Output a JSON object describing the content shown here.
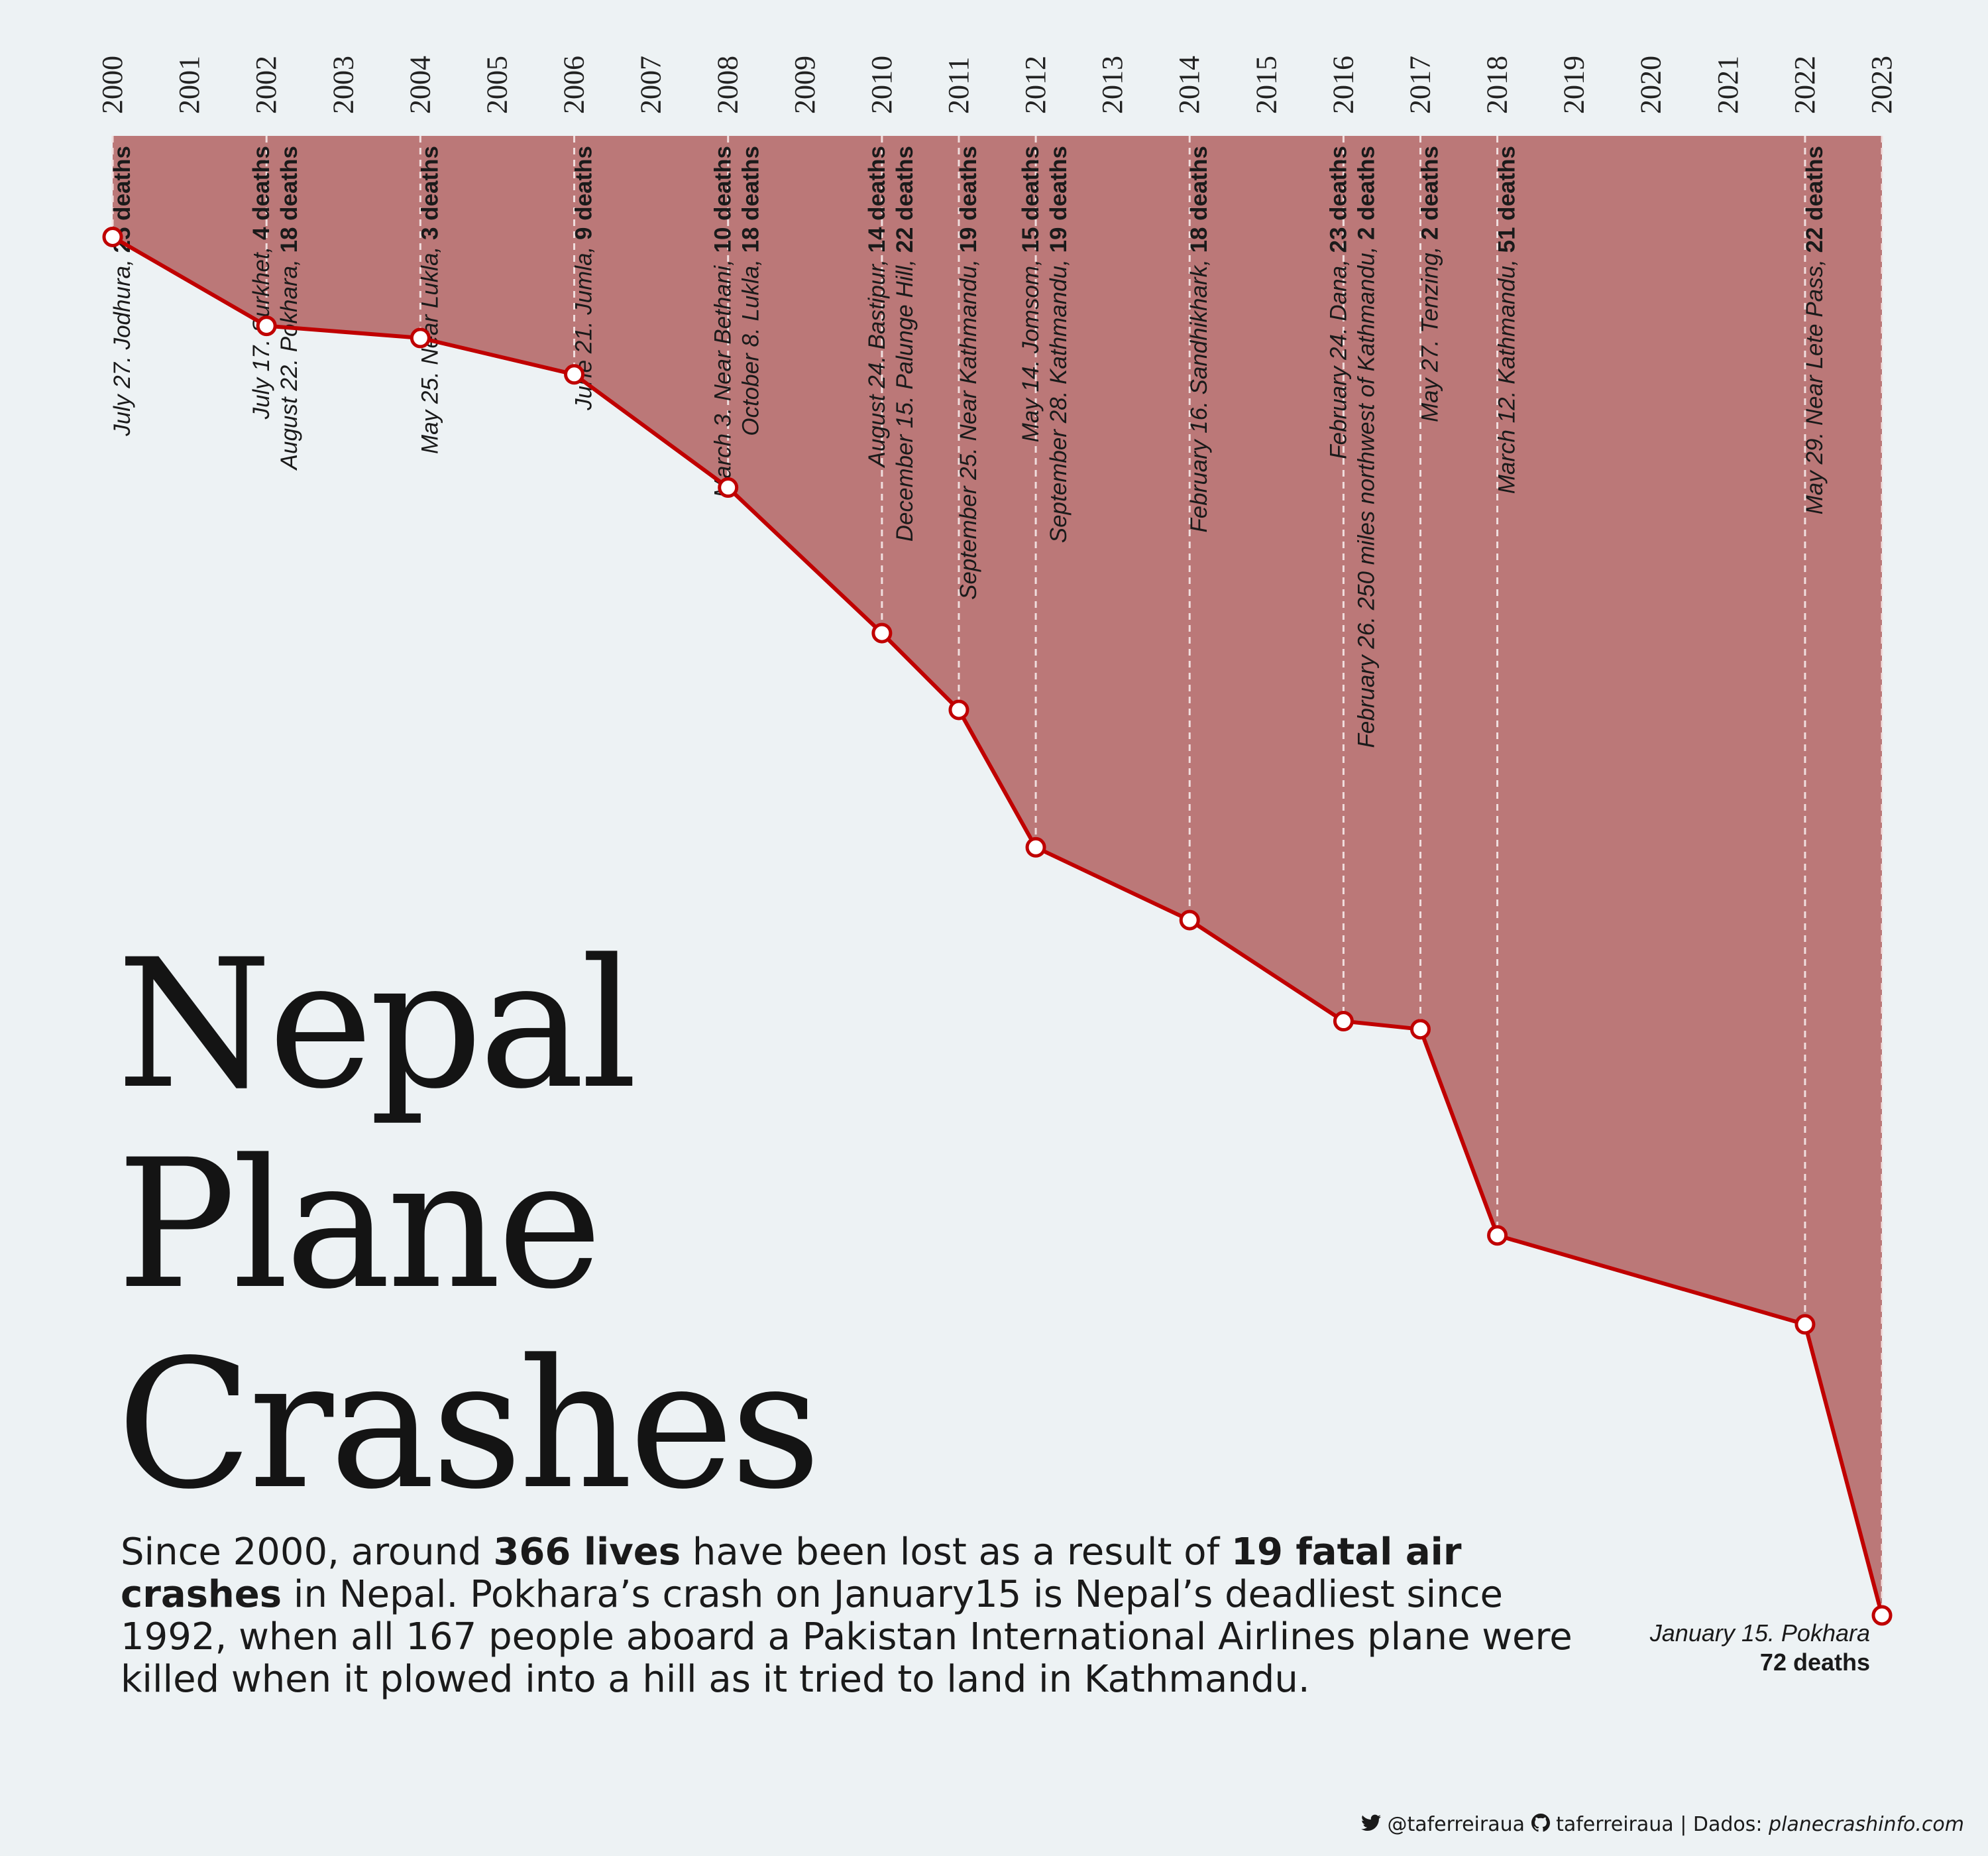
{
  "title_lines": [
    "Nepal",
    "Plane",
    "Crashes"
  ],
  "subtitle": {
    "p1": "Since 2000, around ",
    "b1": "366 lives",
    "p2": " have been lost as a result of ",
    "b2": "19 fatal air crashes",
    "p3": " in Nepal. Pokhara’s crash on January15 is Nepal’s deadliest since 1992, when all 167 people aboard a Pakistan International Airlines plane were killed when it plowed into a hill as it tried to land in Kathmandu."
  },
  "footer": {
    "twitter_icon": "twitter-bird-icon",
    "twitter": "@taferreiraua",
    "github_icon": "github-icon",
    "github": "taferreiraua",
    "separator": "|",
    "source_label": "Dados:",
    "source": "planecrashinfo.com"
  },
  "colors": {
    "area": "#bb7878",
    "line": "#c00000",
    "marker_fill": "#ffffff",
    "guide": "#f0dede",
    "background": "#edf2f4"
  },
  "chart_data": {
    "type": "area",
    "description_of_encoding": "Cumulative deaths since 2000 drawn downward from the top of the plot; each marker is a year with fatal crashes.",
    "years": [
      2000,
      2001,
      2002,
      2003,
      2004,
      2005,
      2006,
      2007,
      2008,
      2009,
      2010,
      2011,
      2012,
      2013,
      2014,
      2015,
      2016,
      2017,
      2018,
      2019,
      2020,
      2021,
      2022,
      2023
    ],
    "x": [
      2000,
      2002,
      2004,
      2006,
      2008,
      2010,
      2011,
      2012,
      2014,
      2016,
      2017,
      2018,
      2022,
      2023
    ],
    "y": [
      25,
      47,
      50,
      59,
      87,
      123,
      142,
      176,
      194,
      219,
      221,
      272,
      294,
      366
    ],
    "ylim": [
      0,
      366
    ],
    "events": [
      {
        "year": 2000,
        "lines": [
          {
            "text": "July 27. Jodhura, ",
            "deaths": "25 deaths"
          }
        ]
      },
      {
        "year": 2002,
        "lines": [
          {
            "text": "July 17. Surkhet, ",
            "deaths": "4 deaths"
          },
          {
            "text": "August 22. Pokhara, ",
            "deaths": "18 deaths"
          }
        ]
      },
      {
        "year": 2004,
        "lines": [
          {
            "text": "May 25. Near Lukla, ",
            "deaths": "3 deaths"
          }
        ]
      },
      {
        "year": 2006,
        "lines": [
          {
            "text": "June 21. Jumla, ",
            "deaths": "9 deaths"
          }
        ]
      },
      {
        "year": 2008,
        "lines": [
          {
            "text": "March 3. Near Bethani, ",
            "deaths": "10 deaths"
          },
          {
            "text": "October 8. Lukla, ",
            "deaths": "18 deaths"
          }
        ]
      },
      {
        "year": 2010,
        "lines": [
          {
            "text": "August 24. Bastipur, ",
            "deaths": "14 deaths"
          },
          {
            "text": "December 15. Palunge Hill, ",
            "deaths": "22 deaths"
          }
        ]
      },
      {
        "year": 2011,
        "lines": [
          {
            "text": "September 25. Near Kathmandu, ",
            "deaths": "19 deaths"
          }
        ]
      },
      {
        "year": 2012,
        "lines": [
          {
            "text": "May 14. Jomsom, ",
            "deaths": "15 deaths"
          },
          {
            "text": "September 28. Kathmandu, ",
            "deaths": "19 deaths"
          }
        ]
      },
      {
        "year": 2014,
        "lines": [
          {
            "text": "February 16. Sandhikhark, ",
            "deaths": "18 deaths"
          }
        ]
      },
      {
        "year": 2016,
        "lines": [
          {
            "text": "February 24. Dana, ",
            "deaths": "23 deaths"
          },
          {
            "text": "February 26. 250 miles northwest of Kathmandu, ",
            "deaths": "2 deaths"
          }
        ]
      },
      {
        "year": 2017,
        "lines": [
          {
            "text": "May 27. Tenzing, ",
            "deaths": "2 deaths"
          }
        ]
      },
      {
        "year": 2018,
        "lines": [
          {
            "text": "March 12. Kathmandu, ",
            "deaths": "51 deaths"
          }
        ]
      },
      {
        "year": 2022,
        "lines": [
          {
            "text": "May 29. Near Lete Pass, ",
            "deaths": "22 deaths"
          }
        ]
      }
    ],
    "last_event": {
      "year": 2023,
      "location": "January 15. Pokhara",
      "deaths": "72 deaths"
    }
  }
}
